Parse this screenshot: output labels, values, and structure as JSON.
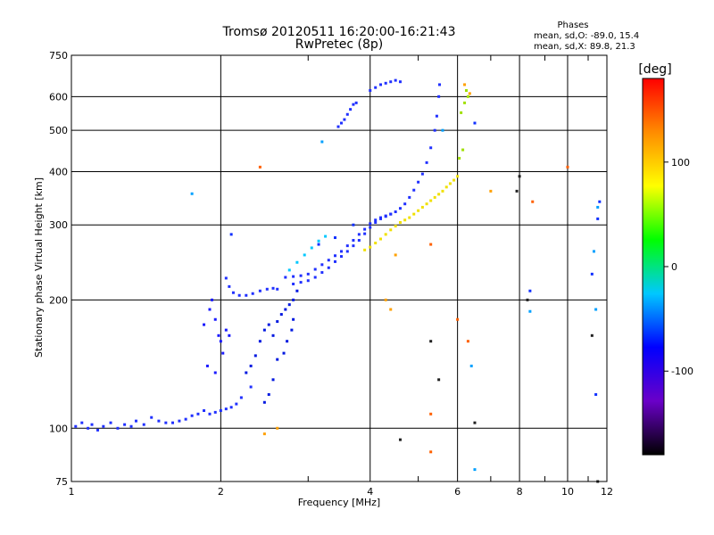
{
  "chart_data": {
    "type": "scatter",
    "title": "Tromsø 20120511 16:20:00-16:21:43",
    "subtitle": "RwPretec (8p)",
    "phases": {
      "heading": "Phases",
      "line_o": "mean, sd,O: -89.0, 15.4",
      "line_x": "mean, sd,X: 89.8, 21.3"
    },
    "xlabel": "Frequency [MHz]",
    "ylabel": "Stationary phase Virtual Height [km]",
    "x_scale": "log",
    "y_scale": "log",
    "xlim": [
      1,
      12
    ],
    "ylim": [
      75,
      750
    ],
    "x_ticks": [
      1,
      2,
      4,
      6,
      8,
      10,
      12
    ],
    "x_minor_ticks": [
      3,
      5,
      7,
      9,
      11
    ],
    "y_ticks": [
      75,
      100,
      200,
      300,
      400,
      500,
      600,
      750
    ],
    "grid": true,
    "colorbar": {
      "label": "[deg]",
      "range": [
        -180,
        180
      ],
      "ticks": [
        100,
        0,
        -100
      ],
      "colors": [
        "#000000",
        "#6a00c8",
        "#0000ff",
        "#00c8ff",
        "#00ff00",
        "#ffff00",
        "#ff8c00",
        "#ff0000"
      ]
    },
    "series": [
      {
        "color": "#2030ff",
        "points": [
          [
            1.02,
            101
          ],
          [
            1.05,
            103
          ],
          [
            1.08,
            100
          ],
          [
            1.1,
            102
          ],
          [
            1.13,
            99
          ],
          [
            1.16,
            101
          ],
          [
            1.2,
            103
          ],
          [
            1.24,
            100
          ],
          [
            1.28,
            102
          ],
          [
            1.32,
            101
          ],
          [
            1.35,
            104
          ],
          [
            1.4,
            102
          ],
          [
            1.45,
            106
          ],
          [
            1.5,
            104
          ],
          [
            1.55,
            103
          ],
          [
            1.6,
            103
          ],
          [
            1.65,
            104
          ],
          [
            1.7,
            105
          ],
          [
            1.75,
            107
          ],
          [
            1.8,
            108
          ],
          [
            1.85,
            110
          ],
          [
            1.9,
            108
          ],
          [
            1.95,
            109
          ],
          [
            2.0,
            110
          ],
          [
            2.05,
            111
          ],
          [
            2.1,
            112
          ],
          [
            2.15,
            114
          ],
          [
            2.2,
            118
          ],
          [
            2.3,
            125
          ]
        ]
      },
      {
        "color": "#2030ff",
        "points": [
          [
            2.05,
            225
          ],
          [
            2.08,
            215
          ],
          [
            2.12,
            208
          ],
          [
            2.18,
            205
          ],
          [
            2.25,
            205
          ],
          [
            2.32,
            207
          ],
          [
            2.4,
            210
          ],
          [
            2.48,
            212
          ],
          [
            2.55,
            213
          ],
          [
            2.6,
            212
          ]
        ]
      },
      {
        "color": "#0018e0",
        "points": [
          [
            2.25,
            135
          ],
          [
            2.3,
            140
          ],
          [
            2.35,
            148
          ],
          [
            2.4,
            160
          ],
          [
            2.45,
            170
          ],
          [
            2.5,
            175
          ],
          [
            2.55,
            165
          ],
          [
            2.6,
            178
          ],
          [
            2.65,
            185
          ],
          [
            2.7,
            190
          ],
          [
            2.75,
            195
          ],
          [
            2.8,
            200
          ],
          [
            2.78,
            170
          ],
          [
            2.72,
            160
          ],
          [
            2.68,
            150
          ],
          [
            2.6,
            145
          ],
          [
            2.55,
            130
          ],
          [
            2.5,
            120
          ],
          [
            2.45,
            115
          ],
          [
            2.8,
            180
          ],
          [
            2.85,
            210
          ]
        ]
      },
      {
        "color": "#2030ff",
        "points": [
          [
            2.7,
            226
          ],
          [
            2.8,
            227
          ],
          [
            2.9,
            228
          ],
          [
            3.0,
            230
          ],
          [
            3.1,
            236
          ],
          [
            3.2,
            242
          ],
          [
            3.3,
            248
          ],
          [
            3.4,
            254
          ],
          [
            3.5,
            260
          ],
          [
            3.6,
            268
          ],
          [
            3.7,
            276
          ],
          [
            3.8,
            285
          ],
          [
            3.9,
            293
          ],
          [
            4.0,
            302
          ],
          [
            4.1,
            308
          ],
          [
            4.2,
            312
          ],
          [
            4.3,
            315
          ],
          [
            4.4,
            318
          ],
          [
            4.5,
            322
          ],
          [
            4.6,
            328
          ],
          [
            4.7,
            336
          ],
          [
            4.8,
            348
          ],
          [
            4.9,
            362
          ],
          [
            5.0,
            378
          ],
          [
            5.1,
            395
          ],
          [
            5.2,
            420
          ],
          [
            5.3,
            455
          ],
          [
            5.4,
            500
          ],
          [
            5.45,
            540
          ],
          [
            5.5,
            600
          ],
          [
            5.52,
            640
          ]
        ]
      },
      {
        "color": "#2030ff",
        "points": [
          [
            2.8,
            218
          ],
          [
            2.9,
            220
          ],
          [
            3.0,
            222
          ],
          [
            3.1,
            226
          ],
          [
            3.2,
            232
          ],
          [
            3.3,
            238
          ],
          [
            3.4,
            246
          ],
          [
            3.5,
            253
          ],
          [
            3.6,
            260
          ],
          [
            3.7,
            268
          ],
          [
            3.8,
            276
          ],
          [
            3.9,
            286
          ],
          [
            4.0,
            296
          ],
          [
            4.1,
            304
          ],
          [
            4.2,
            310
          ],
          [
            4.3,
            314
          ],
          [
            4.4,
            318
          ]
        ]
      },
      {
        "color": "#f0e000",
        "points": [
          [
            3.9,
            262
          ],
          [
            4.0,
            266
          ],
          [
            4.1,
            272
          ],
          [
            4.2,
            278
          ],
          [
            4.3,
            285
          ],
          [
            4.4,
            292
          ],
          [
            4.5,
            298
          ],
          [
            4.6,
            304
          ],
          [
            4.7,
            308
          ],
          [
            4.8,
            312
          ],
          [
            4.9,
            318
          ],
          [
            5.0,
            324
          ],
          [
            5.1,
            330
          ],
          [
            5.2,
            336
          ],
          [
            5.3,
            342
          ],
          [
            5.4,
            348
          ],
          [
            5.5,
            354
          ],
          [
            5.6,
            360
          ],
          [
            5.7,
            368
          ],
          [
            5.8,
            375
          ],
          [
            5.9,
            382
          ],
          [
            6.0,
            390
          ]
        ]
      },
      {
        "color": "#2030ff",
        "points": [
          [
            3.45,
            510
          ],
          [
            3.5,
            520
          ],
          [
            3.55,
            530
          ],
          [
            3.6,
            545
          ],
          [
            3.65,
            560
          ],
          [
            3.7,
            575
          ],
          [
            3.75,
            580
          ]
        ]
      },
      {
        "color": "#2030ff",
        "points": [
          [
            4.0,
            620
          ],
          [
            4.1,
            630
          ],
          [
            4.2,
            640
          ],
          [
            4.3,
            645
          ],
          [
            4.4,
            650
          ],
          [
            4.5,
            655
          ],
          [
            4.6,
            650
          ]
        ]
      },
      {
        "color": "#1a1aff",
        "points": [
          [
            1.85,
            175
          ],
          [
            1.9,
            190
          ],
          [
            1.92,
            200
          ],
          [
            1.95,
            180
          ],
          [
            1.98,
            165
          ],
          [
            2.0,
            160
          ],
          [
            2.02,
            150
          ],
          [
            2.05,
            170
          ],
          [
            2.08,
            165
          ],
          [
            1.88,
            140
          ],
          [
            1.95,
            135
          ]
        ]
      },
      {
        "color": "#00c8ff",
        "points": [
          [
            2.75,
            235
          ],
          [
            2.85,
            245
          ],
          [
            2.95,
            255
          ],
          [
            3.05,
            265
          ],
          [
            3.15,
            275
          ],
          [
            3.25,
            282
          ]
        ]
      },
      {
        "color": "#a0e000",
        "points": [
          [
            6.1,
            550
          ],
          [
            6.2,
            580
          ],
          [
            6.25,
            620
          ],
          [
            6.3,
            600
          ],
          [
            6.15,
            450
          ],
          [
            6.05,
            430
          ]
        ]
      },
      {
        "color": "#ff6000",
        "points": [
          [
            2.4,
            410
          ],
          [
            5.3,
            270
          ],
          [
            6.0,
            180
          ],
          [
            5.3,
            108
          ],
          [
            5.3,
            88
          ],
          [
            10.0,
            410
          ],
          [
            8.5,
            340
          ],
          [
            6.3,
            160
          ]
        ]
      },
      {
        "color": "#00a0ff",
        "points": [
          [
            1.75,
            355
          ],
          [
            3.2,
            470
          ],
          [
            5.6,
            500
          ],
          [
            8.4,
            188
          ],
          [
            11.3,
            260
          ],
          [
            11.5,
            330
          ],
          [
            11.4,
            190
          ],
          [
            6.4,
            140
          ],
          [
            6.5,
            80
          ]
        ]
      },
      {
        "color": "#202020",
        "points": [
          [
            5.3,
            160
          ],
          [
            4.6,
            94
          ],
          [
            5.5,
            130
          ],
          [
            6.5,
            103
          ],
          [
            8.0,
            390
          ],
          [
            8.3,
            200
          ],
          [
            11.5,
            75
          ],
          [
            11.2,
            165
          ],
          [
            7.9,
            360
          ]
        ]
      },
      {
        "color": "#1030ff",
        "points": [
          [
            2.1,
            285
          ],
          [
            3.15,
            270
          ],
          [
            3.4,
            280
          ],
          [
            3.7,
            300
          ],
          [
            6.5,
            520
          ],
          [
            11.5,
            310
          ],
          [
            11.6,
            340
          ],
          [
            11.4,
            120
          ],
          [
            8.4,
            210
          ],
          [
            11.2,
            230
          ]
        ]
      },
      {
        "color": "#ffa000",
        "points": [
          [
            2.45,
            97
          ],
          [
            2.6,
            100
          ],
          [
            4.5,
            255
          ],
          [
            4.4,
            190
          ],
          [
            4.3,
            200
          ],
          [
            6.2,
            640
          ],
          [
            6.35,
            610
          ],
          [
            7.0,
            360
          ]
        ]
      }
    ]
  }
}
